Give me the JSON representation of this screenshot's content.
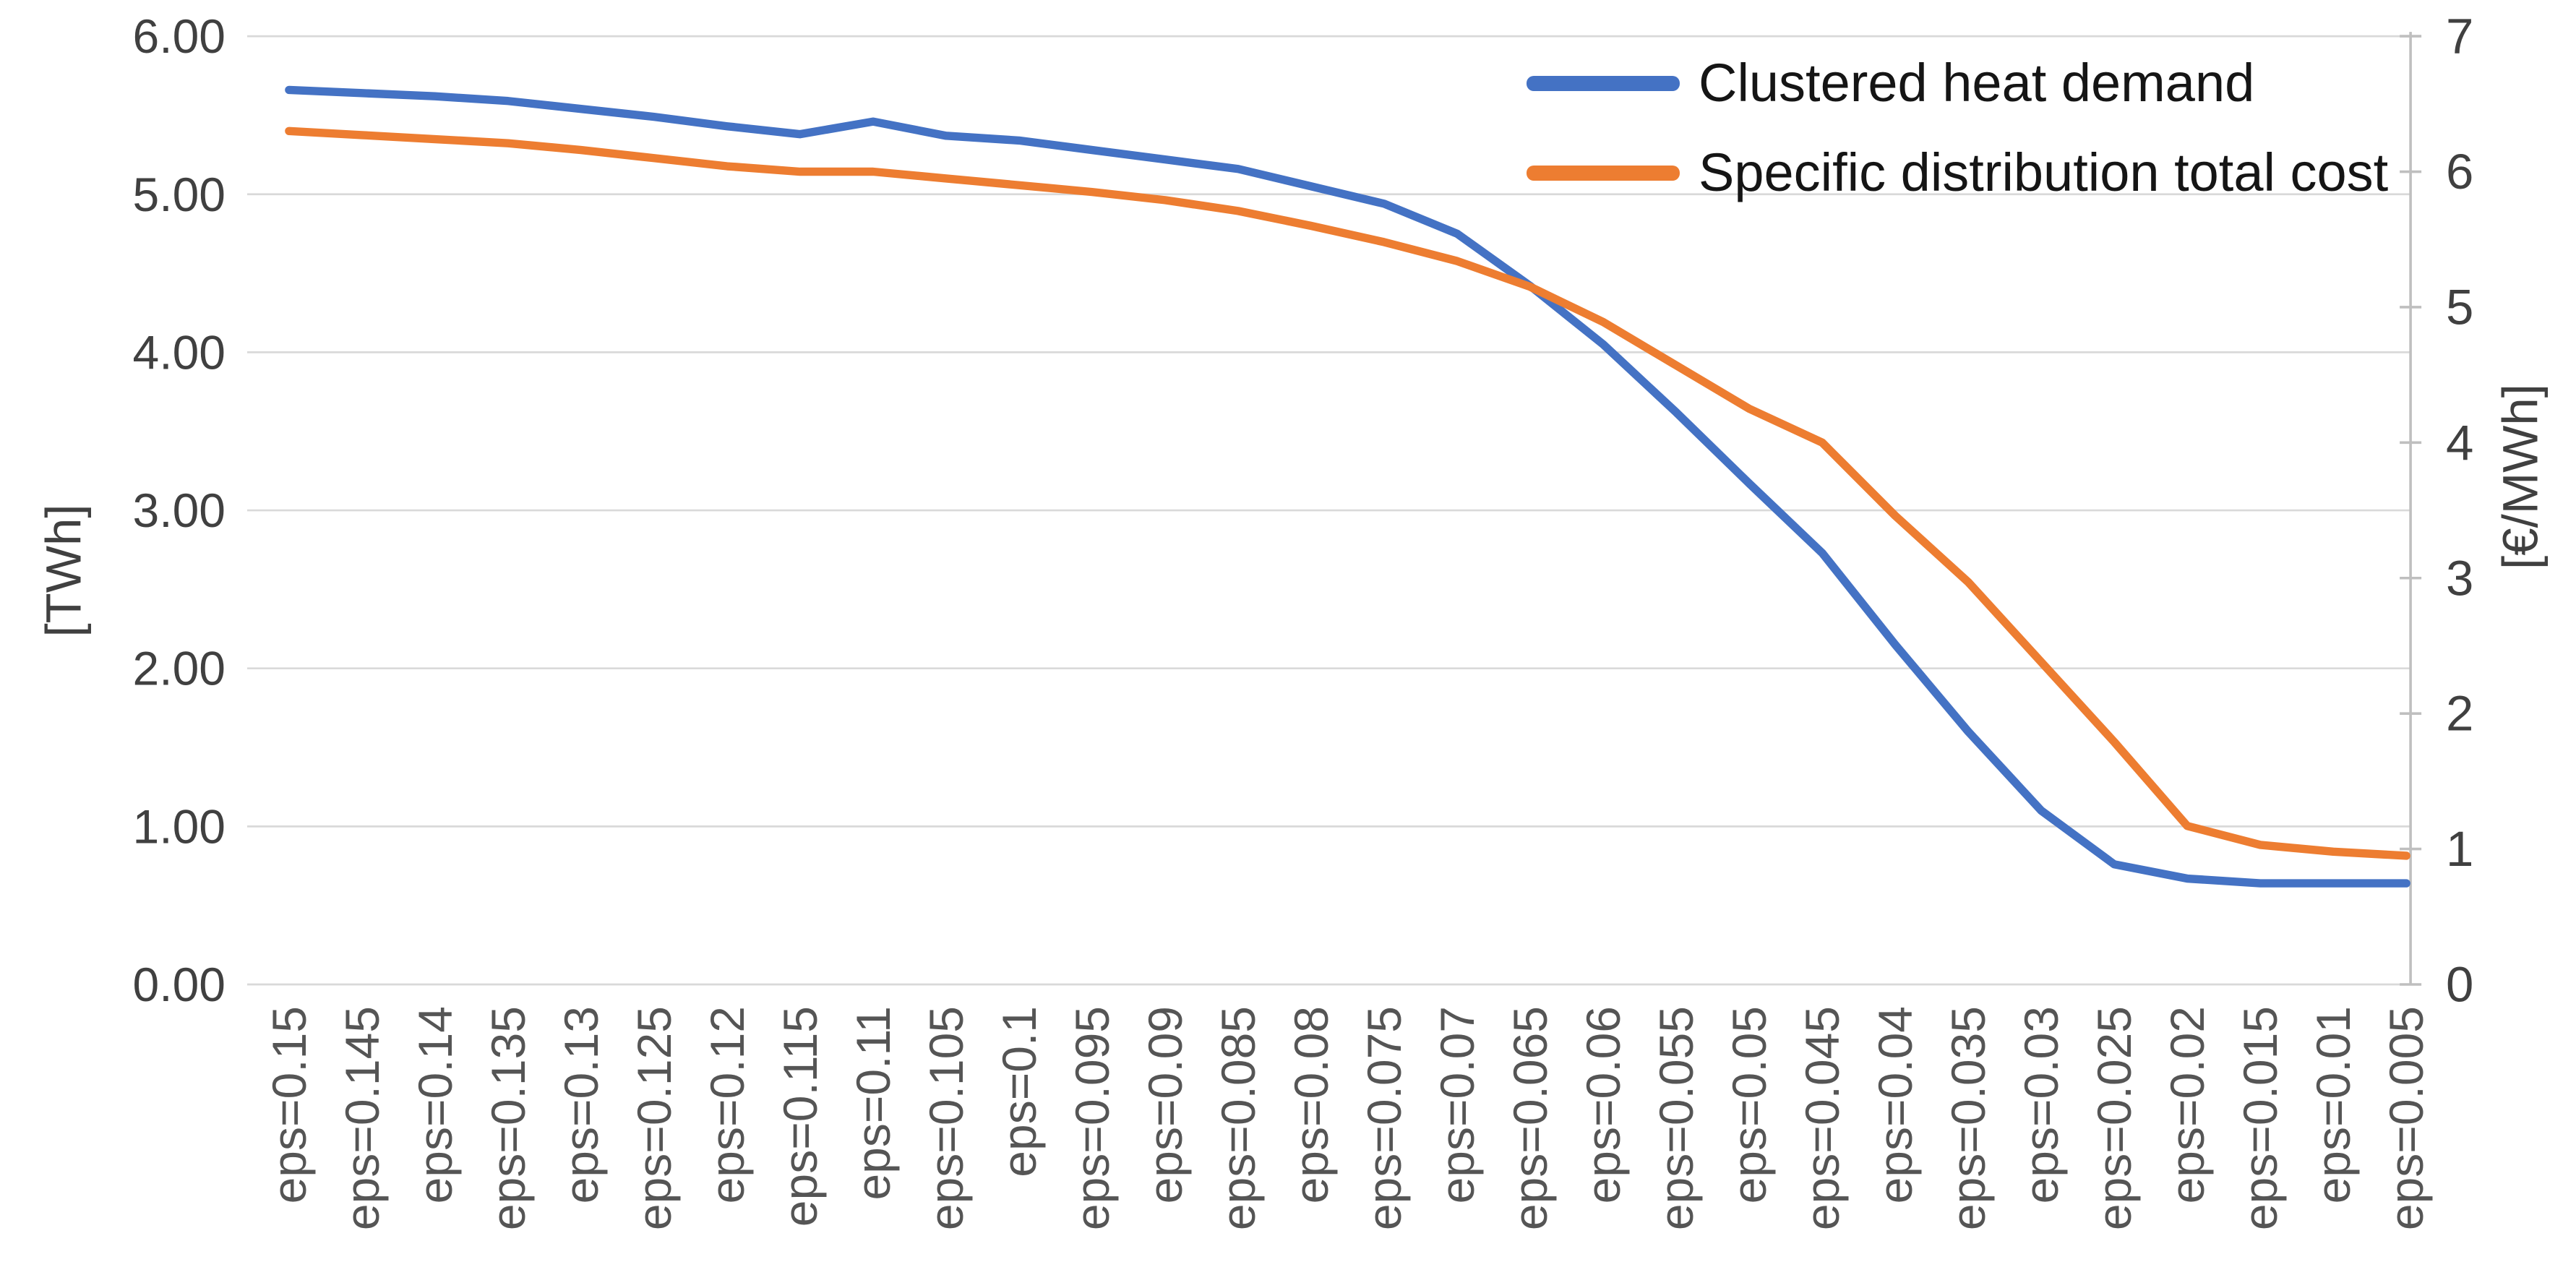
{
  "chart_data": {
    "type": "line",
    "title": "",
    "categories": [
      "eps=0.15",
      "eps=0.145",
      "eps=0.14",
      "eps=0.135",
      "eps=0.13",
      "eps=0.125",
      "eps=0.12",
      "eps=0.115",
      "eps=0.11",
      "eps=0.105",
      "eps=0.1",
      "eps=0.095",
      "eps=0.09",
      "eps=0.085",
      "eps=0.08",
      "eps=0.075",
      "eps=0.07",
      "eps=0.065",
      "eps=0.06",
      "eps=0.055",
      "eps=0.05",
      "eps=0.045",
      "eps=0.04",
      "eps=0.035",
      "eps=0.03",
      "eps=0.025",
      "eps=0.02",
      "eps=0.015",
      "eps=0.01",
      "eps=0.005"
    ],
    "series": [
      {
        "name": "Clustered heat demand",
        "axis": "left",
        "color": "#4472C4",
        "values": [
          5.66,
          5.64,
          5.62,
          5.59,
          5.54,
          5.49,
          5.43,
          5.38,
          5.46,
          5.37,
          5.34,
          5.28,
          5.22,
          5.16,
          5.05,
          4.94,
          4.75,
          4.42,
          4.05,
          3.62,
          3.17,
          2.73,
          2.15,
          1.6,
          1.1,
          0.76,
          0.67,
          0.64,
          0.64,
          0.64
        ]
      },
      {
        "name": "Specific distribution total cost",
        "axis": "right",
        "color": "#ED7D31",
        "values": [
          6.3,
          6.27,
          6.24,
          6.21,
          6.16,
          6.1,
          6.04,
          6.0,
          6.0,
          5.95,
          5.9,
          5.85,
          5.79,
          5.71,
          5.6,
          5.48,
          5.34,
          5.15,
          4.89,
          4.57,
          4.25,
          4.0,
          3.46,
          2.97,
          2.38,
          1.79,
          1.17,
          1.03,
          0.98,
          0.95
        ]
      }
    ],
    "y_left": {
      "title": "[TWh]",
      "min": 0,
      "max": 6,
      "tick_labels": [
        "0.00",
        "1.00",
        "2.00",
        "3.00",
        "4.00",
        "5.00",
        "6.00"
      ]
    },
    "y_right": {
      "title": "[€/MWh]",
      "min": 0,
      "max": 7,
      "tick_labels": [
        "0",
        "1",
        "2",
        "3",
        "4",
        "5",
        "6",
        "7"
      ]
    },
    "grid": true,
    "legend_position": "top-right-inside",
    "colors": {
      "gridline": "#D9D9D9",
      "axis_line": "#BFBFBF",
      "tick_text": "#404040",
      "x_tick_text": "#555555"
    }
  }
}
